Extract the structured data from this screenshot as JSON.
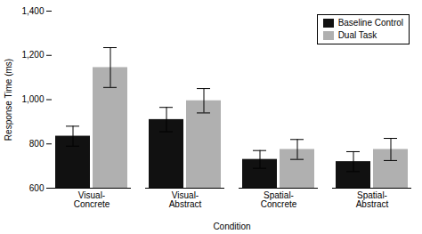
{
  "chart_data": {
    "type": "bar",
    "xlabel": "Condition",
    "ylabel": "Response Time (ms)",
    "categories": [
      "Visual-\nConcrete",
      "Visual-\nAbstract",
      "Spatial-\nConcrete",
      "Spatial-\nAbstract"
    ],
    "series": [
      {
        "name": "Baseline Control",
        "color": "#111111",
        "values": [
          835,
          910,
          730,
          720
        ],
        "errors": [
          45,
          55,
          40,
          45
        ]
      },
      {
        "name": "Dual Task",
        "color": "#b0b0b0",
        "values": [
          1145,
          995,
          775,
          775
        ],
        "errors": [
          90,
          55,
          45,
          50
        ]
      }
    ],
    "ylim": [
      600,
      1400
    ],
    "yticks": [
      600,
      800,
      1000,
      1200,
      1400
    ],
    "grid": false,
    "legend": "upper right"
  }
}
